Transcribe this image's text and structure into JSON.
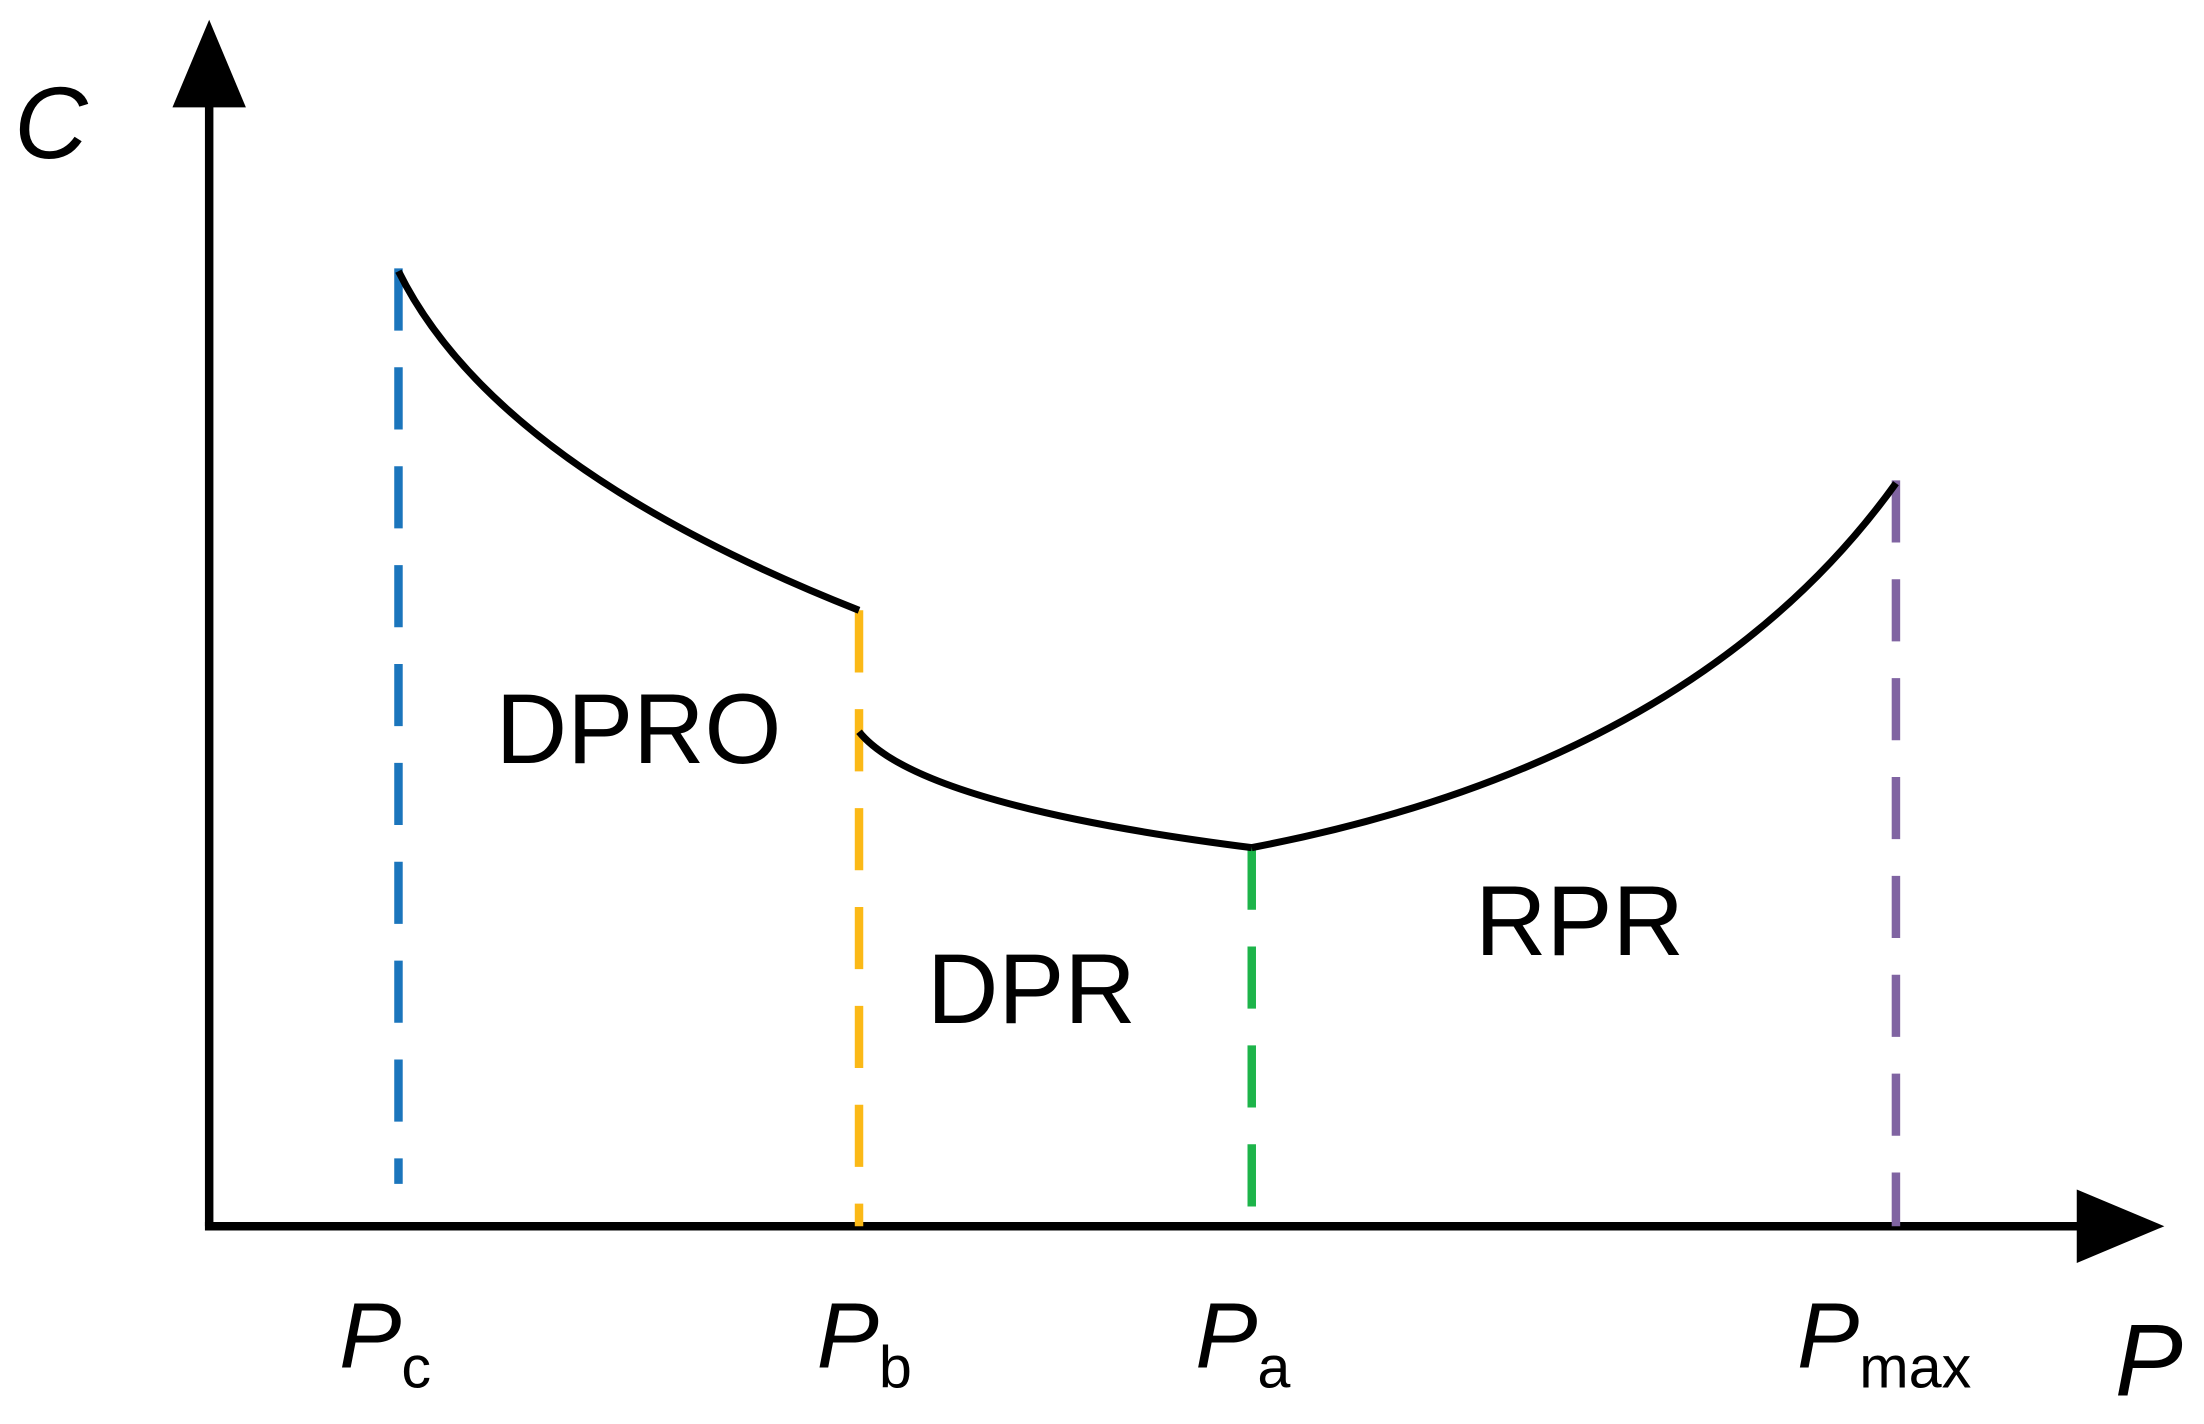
{
  "axes": {
    "y_label": "C",
    "x_label": "P"
  },
  "markers": [
    {
      "symbol": "P",
      "subscript": "c"
    },
    {
      "symbol": "P",
      "subscript": "b"
    },
    {
      "symbol": "P",
      "subscript": "a"
    },
    {
      "symbol": "P",
      "subscript": "max"
    }
  ],
  "regions": [
    "DPRO",
    "DPR",
    "RPR"
  ]
}
